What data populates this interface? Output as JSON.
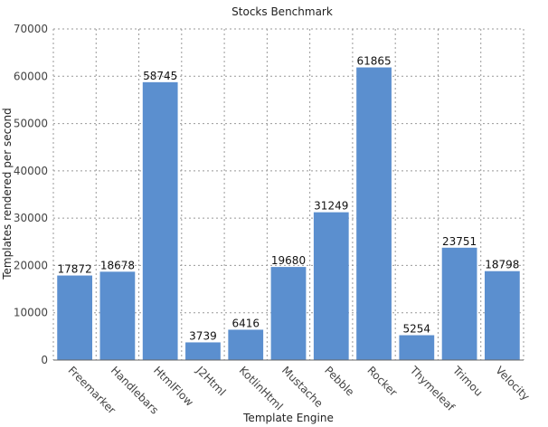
{
  "chart_data": {
    "type": "bar",
    "title": "Stocks Benchmark",
    "xlabel": "Template Engine",
    "ylabel": "Templates rendered per second",
    "categories": [
      "Freemarker",
      "Handlebars",
      "HtmlFlow",
      "J2Html",
      "KotlinHtml",
      "Mustache",
      "Pebble",
      "Rocker",
      "Thymeleaf",
      "Trimou",
      "Velocity"
    ],
    "values": [
      17872,
      18678,
      58745,
      3739,
      6416,
      19680,
      31249,
      61865,
      5254,
      23751,
      18798
    ],
    "value_labels": [
      "17872",
      "18678",
      "58745",
      "3739",
      "6416",
      "19680",
      "31249",
      "61865",
      "5254",
      "23751",
      "18798"
    ],
    "ylim": [
      0,
      70000
    ],
    "yticks": [
      0,
      10000,
      20000,
      30000,
      40000,
      50000,
      60000,
      70000
    ],
    "ytick_labels": [
      "0",
      "10000",
      "20000",
      "30000",
      "40000",
      "50000",
      "60000",
      "70000"
    ],
    "grid": true,
    "bar_color": "#5b8fcf"
  }
}
